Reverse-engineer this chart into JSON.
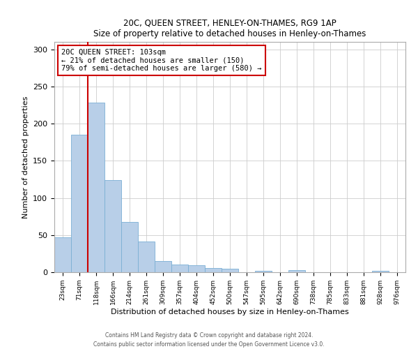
{
  "title1": "20C, QUEEN STREET, HENLEY-ON-THAMES, RG9 1AP",
  "title2": "Size of property relative to detached houses in Henley-on-Thames",
  "xlabel": "Distribution of detached houses by size in Henley-on-Thames",
  "ylabel": "Number of detached properties",
  "bar_labels": [
    "23sqm",
    "71sqm",
    "118sqm",
    "166sqm",
    "214sqm",
    "261sqm",
    "309sqm",
    "357sqm",
    "404sqm",
    "452sqm",
    "500sqm",
    "547sqm",
    "595sqm",
    "642sqm",
    "690sqm",
    "738sqm",
    "785sqm",
    "833sqm",
    "881sqm",
    "928sqm",
    "976sqm"
  ],
  "bar_values": [
    47,
    185,
    228,
    124,
    68,
    41,
    15,
    10,
    9,
    6,
    5,
    0,
    2,
    0,
    3,
    0,
    0,
    0,
    0,
    2,
    0
  ],
  "bar_color": "#b8cfe8",
  "bar_edge_color": "#7aafd4",
  "annotation_title": "20C QUEEN STREET: 103sqm",
  "annotation_line1": "← 21% of detached houses are smaller (150)",
  "annotation_line2": "79% of semi-detached houses are larger (580) →",
  "annotation_box_color": "#ffffff",
  "annotation_border_color": "#cc0000",
  "vline_color": "#cc0000",
  "vline_x": 1.5,
  "ylim": [
    0,
    310
  ],
  "yticks": [
    0,
    50,
    100,
    150,
    200,
    250,
    300
  ],
  "footer1": "Contains HM Land Registry data © Crown copyright and database right 2024.",
  "footer2": "Contains public sector information licensed under the Open Government Licence v3.0."
}
